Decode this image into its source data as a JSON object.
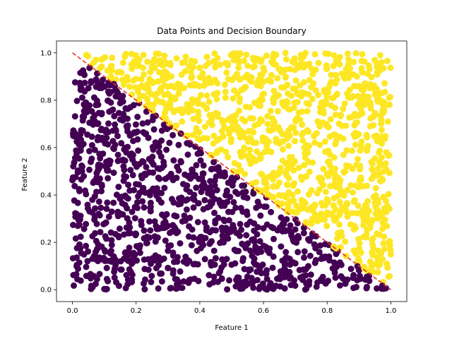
{
  "chart_data": {
    "type": "scatter",
    "title": "Data Points and Decision Boundary",
    "xlabel": "Feature 1",
    "ylabel": "Feature 2",
    "xlim": [
      -0.05,
      1.05
    ],
    "ylim": [
      -0.05,
      1.05
    ],
    "xticks": [
      "0.0",
      "0.2",
      "0.4",
      "0.6",
      "0.8",
      "1.0"
    ],
    "yticks": [
      "0.0",
      "0.2",
      "0.4",
      "0.6",
      "0.8",
      "1.0"
    ],
    "grid": false,
    "legend": "none",
    "boundary": {
      "style": "dashed",
      "color": "#e8322a",
      "x": [
        0.0,
        1.0
      ],
      "y": [
        1.0,
        0.0
      ]
    },
    "series": [
      {
        "class_rule": "x + y < 1",
        "color": "#440154",
        "count": 1050
      },
      {
        "class_rule": "x + y >= 1",
        "color": "#fde725",
        "count": 1050
      }
    ]
  }
}
